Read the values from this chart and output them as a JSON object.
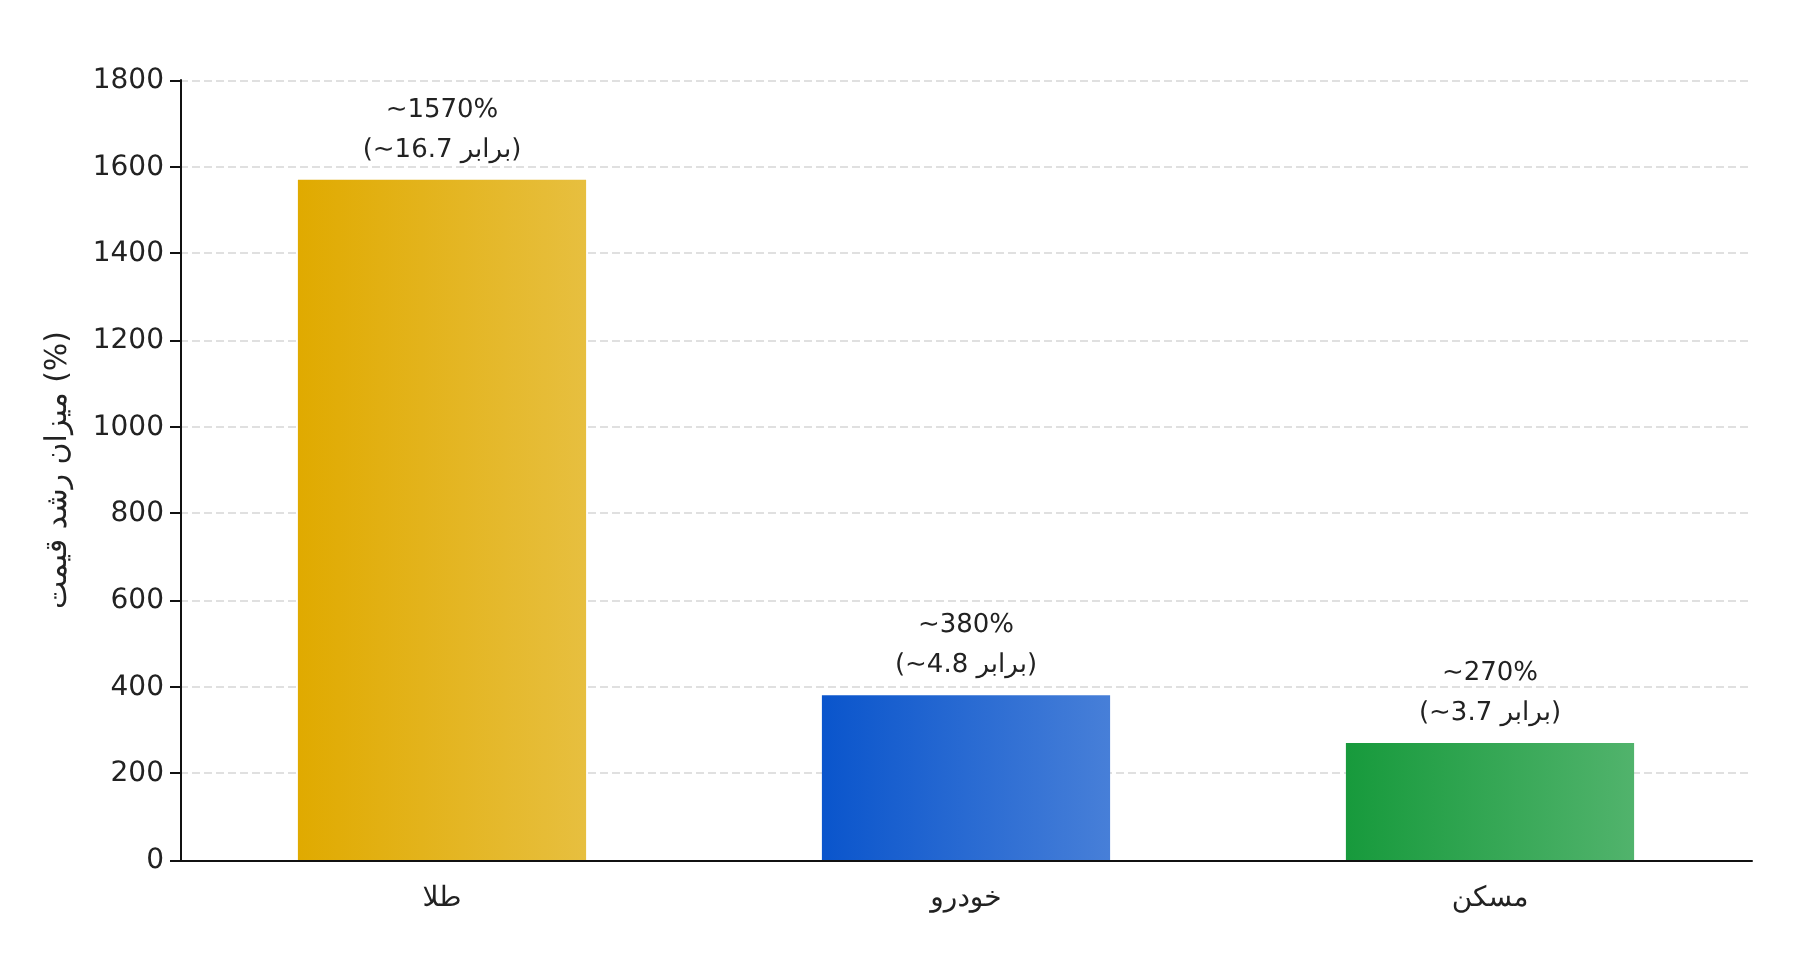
{
  "chart_data": {
    "type": "bar",
    "ylabel": "میزان رشد قیمت (%)",
    "categories": [
      "طلا",
      "خودرو",
      "مسکن"
    ],
    "values": [
      1570,
      380,
      270
    ],
    "colors": [
      "#e0aa00",
      "#0a55cc",
      "#179a3c"
    ],
    "value_labels": [
      "~1570%\n(~16.7 برابر)",
      "~380%\n(~4.8 برابر)",
      "~270%\n(~3.7 برابر)"
    ],
    "ylim": [
      0,
      1800
    ],
    "yticks": [
      0,
      200,
      400,
      600,
      800,
      1000,
      1200,
      1400,
      1600,
      1800
    ],
    "grid": "y"
  }
}
